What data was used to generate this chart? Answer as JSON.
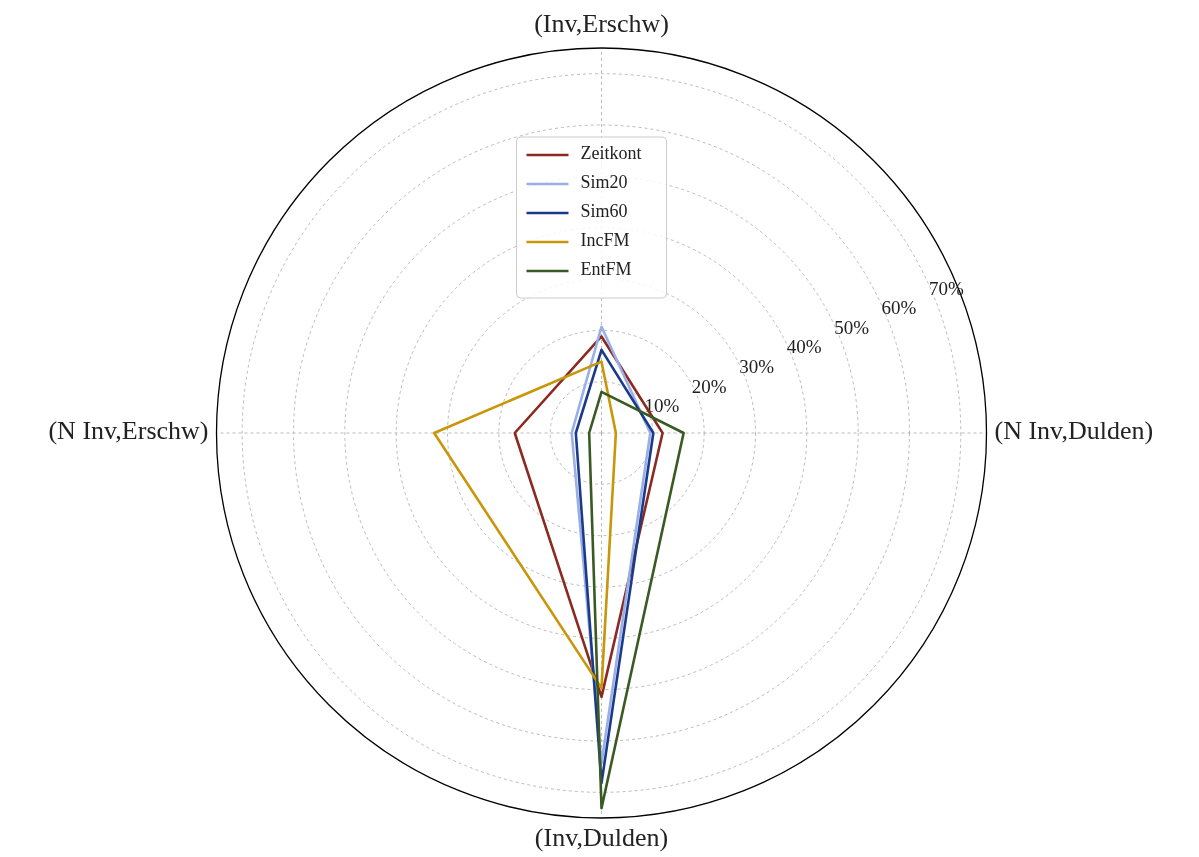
{
  "chart_data": {
    "type": "radar",
    "categories": [
      "(Inv,Erschw)",
      "(N Inv,Dulden)",
      "(Inv,Dulden)",
      "(N Inv,Erschw)"
    ],
    "series": [
      {
        "name": "Zeitkont",
        "color": "#8b2a20",
        "values": [
          18.8,
          11.9,
          51.4,
          16.9
        ]
      },
      {
        "name": "Sim20",
        "color": "#9aaee8",
        "values": [
          20.7,
          9.5,
          64.3,
          5.8
        ]
      },
      {
        "name": "Sim60",
        "color": "#1a3a8a",
        "values": [
          16.2,
          10.1,
          68.2,
          5.0
        ]
      },
      {
        "name": "IncFM",
        "color": "#c9960a",
        "values": [
          13.9,
          2.8,
          49.7,
          32.6
        ]
      },
      {
        "name": "EntFM",
        "color": "#3a5a24",
        "values": [
          8.0,
          16.0,
          73.1,
          2.4
        ]
      }
    ],
    "ylim": [
      0,
      75
    ],
    "yticks": [
      {
        "value": 10,
        "label": "10%"
      },
      {
        "value": 20,
        "label": "20%"
      },
      {
        "value": 30,
        "label": "30%"
      },
      {
        "value": 40,
        "label": "40%"
      },
      {
        "value": 50,
        "label": "50%"
      },
      {
        "value": 60,
        "label": "60%"
      },
      {
        "value": 70,
        "label": "70%"
      }
    ],
    "grid": true,
    "legend": "top",
    "marker": "none",
    "line_style": "solid"
  }
}
